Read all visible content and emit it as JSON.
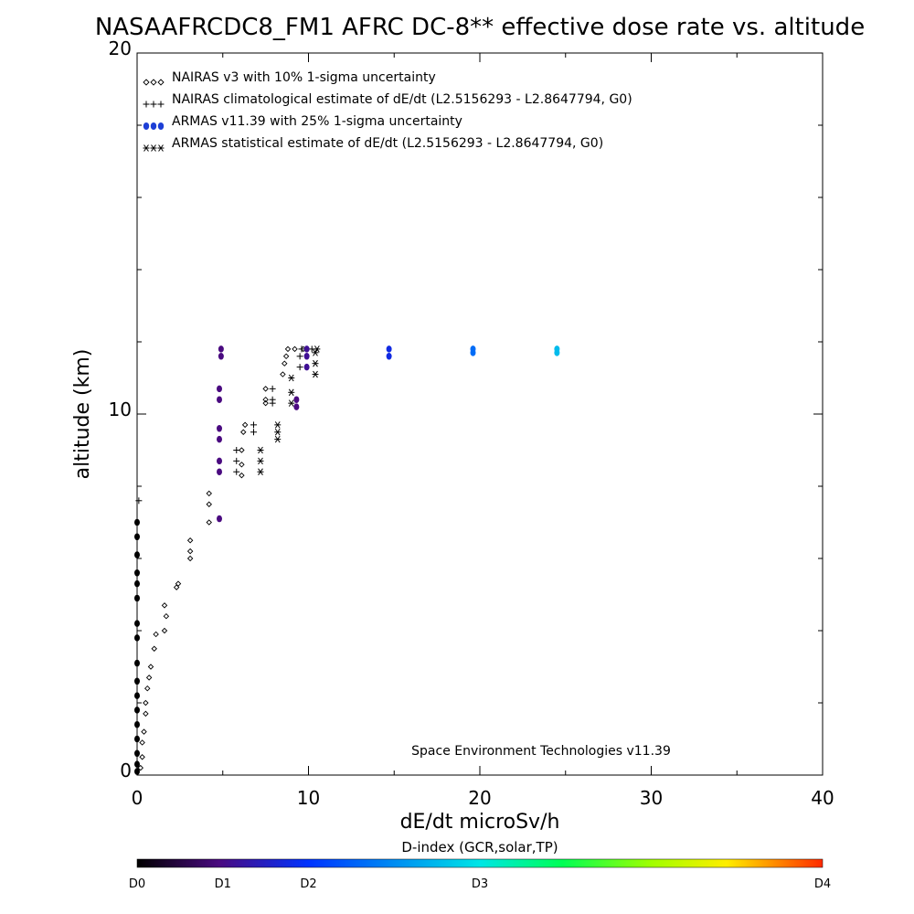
{
  "chart_data": {
    "type": "scatter",
    "title": "NASAAFRCDC8_FM1 AFRC DC-8** effective dose rate vs. altitude",
    "xlabel": "dE/dt microSv/h",
    "ylabel": "altitude (km)",
    "xlim": [
      0,
      40
    ],
    "ylim": [
      0,
      20
    ],
    "x_ticks": [
      "0",
      "10",
      "20",
      "30",
      "40"
    ],
    "y_ticks": [
      "0",
      "10",
      "20"
    ],
    "grid": false,
    "legend_position": "top-left",
    "legend": [
      {
        "marker": "◇◇◇",
        "label": "NAIRAS v3 with 10% 1-sigma uncertainty"
      },
      {
        "marker": "+++",
        "label": "NAIRAS climatological estimate of dE/dt (L2.5156293 - L2.8647794, G0)"
      },
      {
        "marker": "●●●",
        "label": "ARMAS v11.39 with 25% 1-sigma uncertainty"
      },
      {
        "marker": "***",
        "label": "ARMAS statistical estimate of dE/dt (L2.5156293 - L2.8647794, G0)"
      }
    ],
    "annotation": "Space Environment Technologies v11.39",
    "colorbar": {
      "title": "D-index (GCR,solar,TP)",
      "labels": [
        "D0",
        "D1",
        "D2",
        "D3",
        "D4"
      ],
      "label_positions": [
        0,
        0.125,
        0.25,
        0.5,
        1
      ]
    },
    "series": [
      {
        "name": "NAIRAS v3 with 10% 1-sigma uncertainty",
        "marker": "diamond",
        "points": [
          [
            0.2,
            0.2
          ],
          [
            0.3,
            0.5
          ],
          [
            0.3,
            0.9
          ],
          [
            0.4,
            1.2
          ],
          [
            0.5,
            1.7
          ],
          [
            0.5,
            2.0
          ],
          [
            0.6,
            2.4
          ],
          [
            0.7,
            2.7
          ],
          [
            0.8,
            3.0
          ],
          [
            1.0,
            3.5
          ],
          [
            1.1,
            3.9
          ],
          [
            1.6,
            4.0
          ],
          [
            1.7,
            4.4
          ],
          [
            1.6,
            4.7
          ],
          [
            2.3,
            5.2
          ],
          [
            2.4,
            5.3
          ],
          [
            3.1,
            6.0
          ],
          [
            3.1,
            6.2
          ],
          [
            3.1,
            6.5
          ],
          [
            4.2,
            7.0
          ],
          [
            4.2,
            7.5
          ],
          [
            4.2,
            7.8
          ],
          [
            6.1,
            8.3
          ],
          [
            6.1,
            8.6
          ],
          [
            6.1,
            9.0
          ],
          [
            6.2,
            9.5
          ],
          [
            6.3,
            9.7
          ],
          [
            7.5,
            10.3
          ],
          [
            7.5,
            10.4
          ],
          [
            7.5,
            10.7
          ],
          [
            8.5,
            11.1
          ],
          [
            8.6,
            11.4
          ],
          [
            8.7,
            11.6
          ],
          [
            8.8,
            11.8
          ],
          [
            9.2,
            11.8
          ],
          [
            9.7,
            11.8
          ]
        ]
      },
      {
        "name": "NAIRAS climatological estimate of dE/dt (L2.5156293 - L2.8647794, G0)",
        "marker": "plus",
        "points": [
          [
            0.1,
            7.6
          ],
          [
            5.8,
            8.4
          ],
          [
            5.8,
            8.7
          ],
          [
            5.8,
            9.0
          ],
          [
            6.8,
            9.5
          ],
          [
            6.8,
            9.7
          ],
          [
            7.9,
            10.3
          ],
          [
            7.9,
            10.4
          ],
          [
            7.9,
            10.7
          ],
          [
            9.5,
            11.3
          ],
          [
            9.5,
            11.6
          ],
          [
            9.6,
            11.8
          ],
          [
            10.2,
            11.8
          ]
        ]
      },
      {
        "name": "ARMAS v11.39 with 25% 1-sigma uncertainty",
        "marker": "dot",
        "points": [
          {
            "x": 0.0,
            "y": 0.1,
            "d": 0.0
          },
          {
            "x": 0.0,
            "y": 0.3,
            "d": 0.0
          },
          {
            "x": 0.0,
            "y": 0.6,
            "d": 0.0
          },
          {
            "x": 0.0,
            "y": 1.0,
            "d": 0.0
          },
          {
            "x": 0.0,
            "y": 1.4,
            "d": 0.0
          },
          {
            "x": 0.0,
            "y": 1.8,
            "d": 0.0
          },
          {
            "x": 0.0,
            "y": 2.2,
            "d": 0.0
          },
          {
            "x": 0.0,
            "y": 2.6,
            "d": 0.0
          },
          {
            "x": 0.0,
            "y": 3.1,
            "d": 0.0
          },
          {
            "x": 0.0,
            "y": 3.8,
            "d": 0.0
          },
          {
            "x": 0.0,
            "y": 4.2,
            "d": 0.0
          },
          {
            "x": 0.0,
            "y": 4.9,
            "d": 0.0
          },
          {
            "x": 0.0,
            "y": 5.3,
            "d": 0.0
          },
          {
            "x": 0.0,
            "y": 5.6,
            "d": 0.0
          },
          {
            "x": 0.0,
            "y": 6.1,
            "d": 0.0
          },
          {
            "x": 0.0,
            "y": 6.6,
            "d": 0.0
          },
          {
            "x": 0.0,
            "y": 7.0,
            "d": 0.0
          },
          {
            "x": 4.8,
            "y": 7.1,
            "d": 0.12
          },
          {
            "x": 4.8,
            "y": 8.4,
            "d": 0.12
          },
          {
            "x": 4.8,
            "y": 8.7,
            "d": 0.12
          },
          {
            "x": 4.8,
            "y": 9.3,
            "d": 0.12
          },
          {
            "x": 4.8,
            "y": 9.6,
            "d": 0.12
          },
          {
            "x": 4.8,
            "y": 10.4,
            "d": 0.12
          },
          {
            "x": 4.8,
            "y": 10.7,
            "d": 0.12
          },
          {
            "x": 4.9,
            "y": 11.6,
            "d": 0.12
          },
          {
            "x": 4.9,
            "y": 11.8,
            "d": 0.12
          },
          {
            "x": 9.3,
            "y": 10.2,
            "d": 0.12
          },
          {
            "x": 9.3,
            "y": 10.4,
            "d": 0.12
          },
          {
            "x": 9.9,
            "y": 11.3,
            "d": 0.14
          },
          {
            "x": 9.9,
            "y": 11.6,
            "d": 0.14
          },
          {
            "x": 9.9,
            "y": 11.8,
            "d": 0.14
          },
          {
            "x": 14.7,
            "y": 11.6,
            "d": 0.22
          },
          {
            "x": 14.7,
            "y": 11.8,
            "d": 0.22
          },
          {
            "x": 19.6,
            "y": 11.7,
            "d": 0.33
          },
          {
            "x": 19.6,
            "y": 11.8,
            "d": 0.33
          },
          {
            "x": 24.5,
            "y": 11.7,
            "d": 0.44
          },
          {
            "x": 24.5,
            "y": 11.8,
            "d": 0.44
          }
        ]
      },
      {
        "name": "ARMAS statistical estimate of dE/dt (L2.5156293 - L2.8647794, G0)",
        "marker": "asterisk",
        "points": [
          [
            7.2,
            8.4
          ],
          [
            7.2,
            8.7
          ],
          [
            7.2,
            9.0
          ],
          [
            8.2,
            9.3
          ],
          [
            8.2,
            9.5
          ],
          [
            8.2,
            9.7
          ],
          [
            9.0,
            10.3
          ],
          [
            9.0,
            10.6
          ],
          [
            9.0,
            11.0
          ],
          [
            10.4,
            11.1
          ],
          [
            10.4,
            11.4
          ],
          [
            10.4,
            11.7
          ],
          [
            10.5,
            11.8
          ]
        ]
      }
    ]
  }
}
